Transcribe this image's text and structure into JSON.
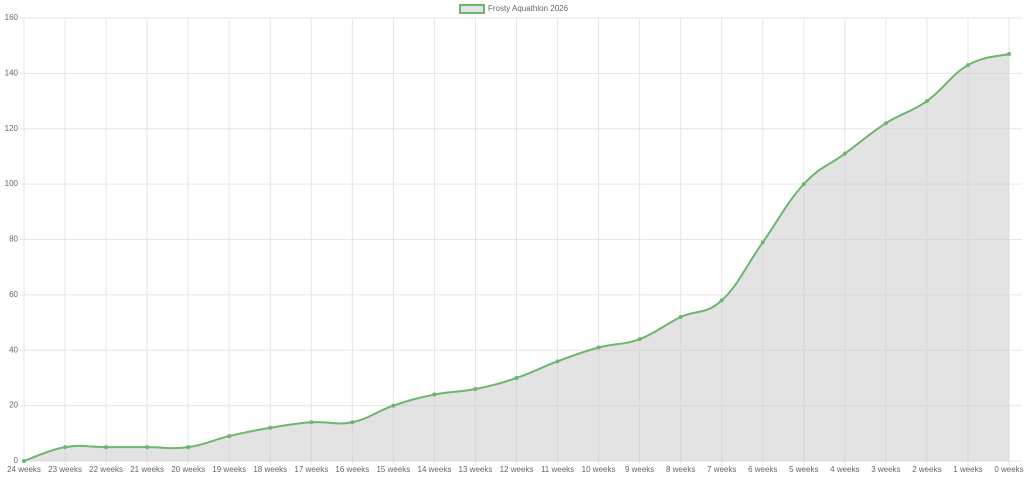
{
  "chart_data": {
    "type": "line",
    "categories": [
      "24 weeks",
      "23 weeks",
      "22 weeks",
      "21 weeks",
      "20 weeks",
      "19 weeks",
      "18 weeks",
      "17 weeks",
      "16 weeks",
      "15 weeks",
      "14 weeks",
      "13 weeks",
      "12 weeks",
      "11 weeks",
      "10 weeks",
      "9 weeks",
      "8 weeks",
      "7 weeks",
      "6 weeks",
      "5 weeks",
      "4 weeks",
      "3 weeks",
      "2 weeks",
      "1 weeks",
      "0 weeks"
    ],
    "series": [
      {
        "name": "Frosty Aquathlon 2026",
        "color": "#6db66d",
        "fill": "rgba(200,200,200,0.5)",
        "values": [
          0,
          5,
          5,
          5,
          5,
          9,
          12,
          14,
          14,
          20,
          24,
          26,
          30,
          36,
          41,
          44,
          52,
          58,
          79,
          100,
          111,
          122,
          130,
          143,
          147
        ]
      }
    ],
    "ylim": [
      0,
      160
    ],
    "yticks": [
      0,
      20,
      40,
      60,
      80,
      100,
      120,
      140,
      160
    ],
    "grid": true
  }
}
